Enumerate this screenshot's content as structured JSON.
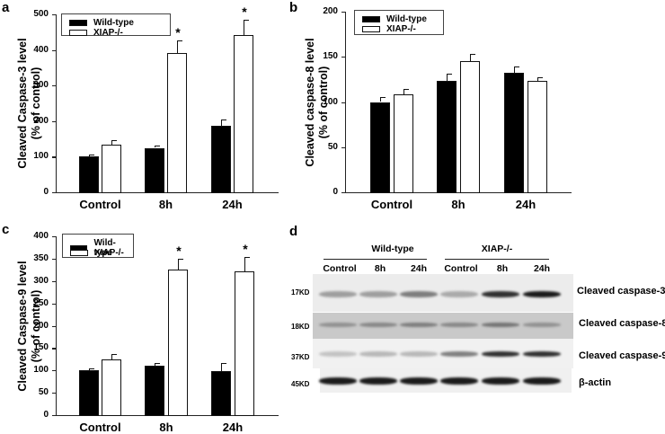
{
  "figure": {
    "panels": {
      "a": {
        "letter": "a",
        "ylabel_line1": "Cleaved Caspase-3 level",
        "ylabel_line2": "(% of control)"
      },
      "b": {
        "letter": "b",
        "ylabel_line1": "Cleaved caspase-8 level",
        "ylabel_line2": "(% of control)"
      },
      "c": {
        "letter": "c",
        "ylabel_line1": "Cleaved Caspase-9 level",
        "ylabel_line2": "(% of control)"
      },
      "d": {
        "letter": "d"
      }
    },
    "legend": {
      "wt": "Wild-type",
      "ko": "XIAP-/-"
    },
    "categories": [
      "Control",
      "8h",
      "24h"
    ],
    "significance_marker": "*",
    "blot": {
      "groups": [
        "Wild-type",
        "XIAP-/-"
      ],
      "lanes": [
        "Control",
        "8h",
        "24h",
        "Control",
        "8h",
        "24h"
      ],
      "rows": [
        {
          "kd": "17KD",
          "label": "Cleaved caspase-3"
        },
        {
          "kd": "18KD",
          "label": "Cleaved caspase-8"
        },
        {
          "kd": "37KD",
          "label": "Cleaved caspase-9"
        },
        {
          "kd": "45KD",
          "label": "β-actin"
        }
      ]
    }
  },
  "chart_data": [
    {
      "panel": "a",
      "type": "bar",
      "title": "",
      "xlabel": "",
      "ylabel": "Cleaved Caspase-3 level (% of control)",
      "categories": [
        "Control",
        "8h",
        "24h"
      ],
      "series": [
        {
          "name": "Wild-type",
          "values": [
            100,
            125,
            188
          ],
          "errors": [
            5,
            6,
            17
          ]
        },
        {
          "name": "XIAP-/-",
          "values": [
            135,
            392,
            441
          ],
          "errors": [
            11,
            35,
            43
          ]
        }
      ],
      "significant": {
        "XIAP-/-": [
          false,
          true,
          true
        ]
      },
      "ylim": [
        0,
        500
      ],
      "yticks": [
        0,
        100,
        200,
        300,
        400,
        500
      ],
      "legend_position": "top-left",
      "grid": false
    },
    {
      "panel": "b",
      "type": "bar",
      "title": "",
      "xlabel": "",
      "ylabel": "Cleaved caspase-8 level (% of control)",
      "categories": [
        "Control",
        "8h",
        "24h"
      ],
      "series": [
        {
          "name": "Wild-type",
          "values": [
            100,
            123,
            132
          ],
          "errors": [
            5,
            8,
            7
          ]
        },
        {
          "name": "XIAP-/-",
          "values": [
            108,
            145,
            123
          ],
          "errors": [
            6,
            8,
            4
          ]
        }
      ],
      "ylim": [
        0,
        200
      ],
      "yticks": [
        0,
        50,
        100,
        150,
        200
      ],
      "legend_position": "top-left",
      "grid": false
    },
    {
      "panel": "c",
      "type": "bar",
      "title": "",
      "xlabel": "",
      "ylabel": "Cleaved Caspase-9 level (% of control)",
      "categories": [
        "Control",
        "8h",
        "24h"
      ],
      "series": [
        {
          "name": "Wild-type",
          "values": [
            100,
            111,
            99
          ],
          "errors": [
            5,
            6,
            17
          ]
        },
        {
          "name": "XIAP-/-",
          "values": [
            125,
            326,
            321
          ],
          "errors": [
            11,
            23,
            32
          ]
        }
      ],
      "significant": {
        "XIAP-/-": [
          false,
          true,
          true
        ]
      },
      "ylim": [
        0,
        400
      ],
      "yticks": [
        0,
        50,
        100,
        150,
        200,
        250,
        300,
        350,
        400
      ],
      "legend_position": "top-left",
      "grid": false
    }
  ]
}
